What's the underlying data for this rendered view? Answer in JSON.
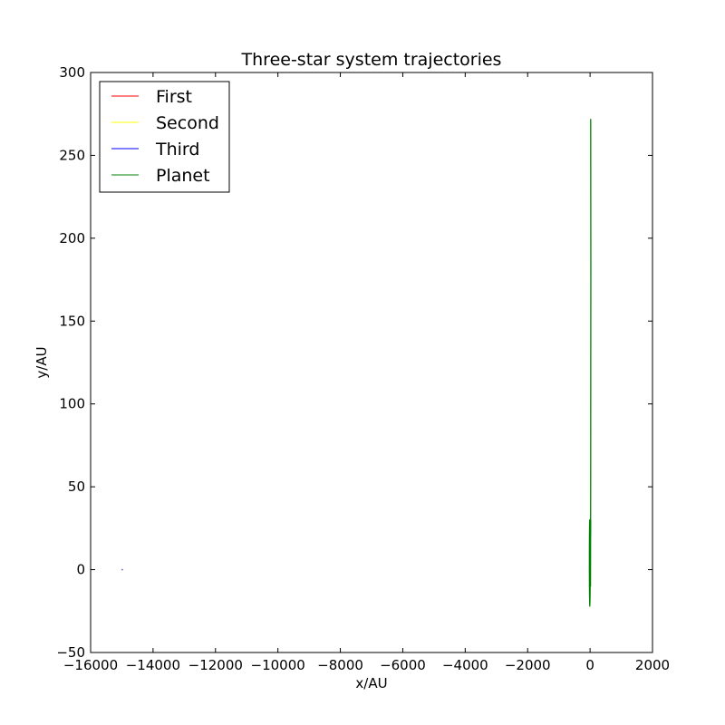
{
  "chart_data": {
    "type": "line",
    "title": "Three-star system trajectories",
    "xlabel": "x/AU",
    "ylabel": "y/AU",
    "xlim": [
      -16000,
      2000
    ],
    "ylim": [
      -50,
      300
    ],
    "xticks": [
      -16000,
      -14000,
      -12000,
      -10000,
      -8000,
      -6000,
      -4000,
      -2000,
      0,
      2000
    ],
    "yticks": [
      -50,
      0,
      50,
      100,
      150,
      200,
      250,
      300
    ],
    "xtick_labels": [
      "−16000",
      "−14000",
      "−12000",
      "−10000",
      "−8000",
      "−6000",
      "−4000",
      "−2000",
      "0",
      "2000"
    ],
    "ytick_labels": [
      "−50",
      "0",
      "50",
      "100",
      "150",
      "200",
      "250",
      "300"
    ],
    "grid": false,
    "legend_position": "top-left",
    "series": [
      {
        "name": "First",
        "color": "#ff0000",
        "x": [
          -15000,
          -15000
        ],
        "y": [
          0,
          0
        ]
      },
      {
        "name": "Second",
        "color": "#ffff00",
        "x": [
          -15000,
          -15000
        ],
        "y": [
          0,
          0
        ]
      },
      {
        "name": "Third",
        "color": "#0000ff",
        "x": [
          -15000,
          -15000
        ],
        "y": [
          0,
          0
        ]
      },
      {
        "name": "Planet",
        "color": "#008000",
        "x": [
          0,
          5,
          10,
          15,
          18,
          20,
          20,
          18,
          15,
          10,
          5,
          0,
          -5,
          -10,
          -15,
          -20,
          -22,
          -22,
          -20,
          -15,
          -10,
          -5,
          0,
          5,
          10,
          14,
          17,
          20,
          22,
          25,
          20
        ],
        "y": [
          0,
          5,
          10,
          15,
          20,
          25,
          30,
          25,
          15,
          5,
          -5,
          -15,
          -20,
          -22,
          -18,
          -10,
          0,
          10,
          20,
          28,
          30,
          25,
          15,
          5,
          -5,
          -10,
          20,
          60,
          120,
          180,
          272
        ]
      }
    ]
  }
}
